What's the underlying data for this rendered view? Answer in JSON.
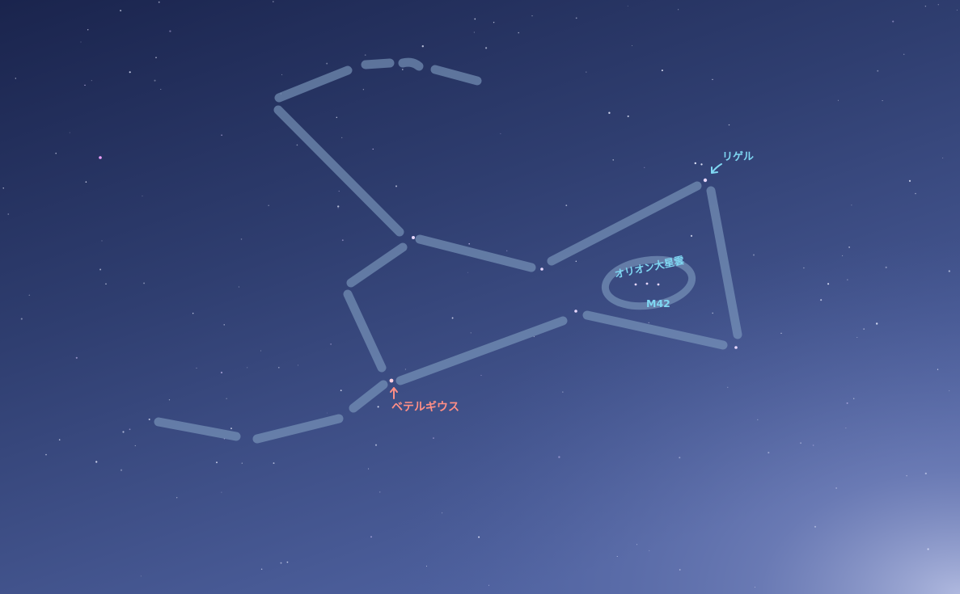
{
  "labels": {
    "rigel": "リゲル",
    "betelgeuse": "ベテルギウス",
    "orion_nebula": "オリオン大星雲",
    "m42": "M42"
  },
  "colors": {
    "sky_top": "#1c2650",
    "sky_mid": "#35467a",
    "sky_bottom": "#5a6fa6",
    "glow": "#aab4dc",
    "constellation_line": "#7f9cc0",
    "label_blue": "#7fd7f2",
    "label_red": "#ff8f86"
  }
}
